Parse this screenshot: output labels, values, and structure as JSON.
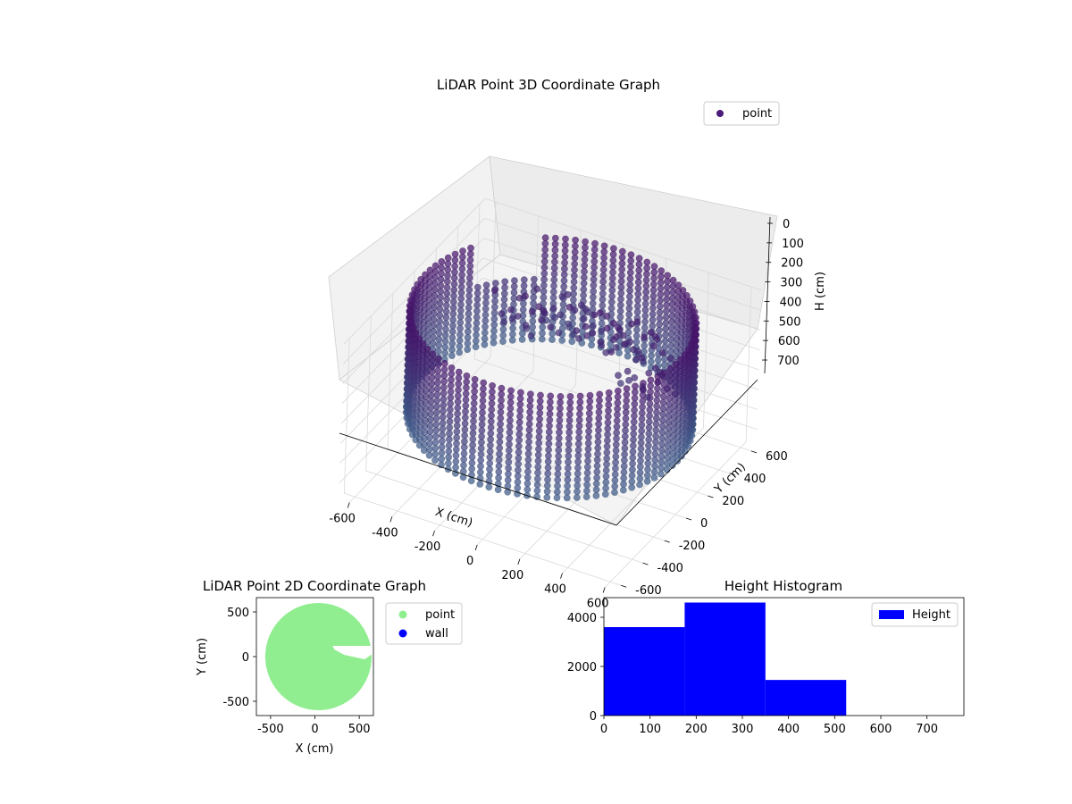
{
  "chart_data": [
    {
      "type": "scatter",
      "projection": "3d",
      "title": "LiDAR Point 3D Coordinate Graph",
      "xlabel": "X (cm)",
      "ylabel": "Y (cm)",
      "zlabel": "H (cm)",
      "xlim": [
        -650,
        650
      ],
      "ylim": [
        -650,
        650
      ],
      "zlim": [
        780,
        0
      ],
      "xticks": [
        -600,
        -400,
        -200,
        0,
        200,
        400,
        600
      ],
      "yticks": [
        -600,
        -400,
        -200,
        0,
        200,
        400,
        600
      ],
      "zticks": [
        0,
        100,
        200,
        300,
        400,
        500,
        600,
        700
      ],
      "z_axis_inverted": true,
      "grid": true,
      "legend": {
        "placement": "upper right",
        "entries": [
          "point"
        ]
      },
      "colormap": "viridis (upper range)",
      "series": [
        {
          "name": "point",
          "marker_color": "#4b1a7a",
          "description_shape": "cylindrical wall of radius ~600 cm centred near (0,0), heights 0–530 cm, plus inner structure near the top",
          "wall": {
            "center_x": 0,
            "center_y": 0,
            "radius": 600,
            "h_min": 0,
            "h_max": 530
          },
          "inner_clusters": [
            {
              "x": 150,
              "y": 100,
              "h": 40
            },
            {
              "x": 300,
              "y": 150,
              "h": 60
            },
            {
              "x": 400,
              "y": 0,
              "h": 120
            },
            {
              "x": -200,
              "y": 100,
              "h": 80
            },
            {
              "x": -100,
              "y": 300,
              "h": 150
            }
          ]
        }
      ]
    },
    {
      "type": "scatter",
      "title": "LiDAR Point 2D Coordinate Graph",
      "xlabel": "X (cm)",
      "ylabel": "Y (cm)",
      "xlim": [
        -660,
        660
      ],
      "ylim": [
        -660,
        660
      ],
      "xticks": [
        -500,
        0,
        500
      ],
      "yticks": [
        -500,
        0,
        500
      ],
      "legend": {
        "placement": "outside right",
        "entries": [
          "point",
          "wall"
        ]
      },
      "series": [
        {
          "name": "point",
          "color": "#90ee90",
          "region": "filled disc radius ~600 cm, notch on right side"
        },
        {
          "name": "wall",
          "color": "#0000ff"
        }
      ]
    },
    {
      "type": "bar",
      "subtype": "histogram",
      "title": "Height Histogram",
      "xlabel": "",
      "ylabel": "",
      "xlim": [
        0,
        780
      ],
      "ylim": [
        0,
        4800
      ],
      "xticks": [
        0,
        100,
        200,
        300,
        400,
        500,
        600,
        700
      ],
      "yticks": [
        0,
        2000,
        4000
      ],
      "legend": {
        "placement": "upper right",
        "entries": [
          "Height"
        ]
      },
      "bins": [
        {
          "from": 0,
          "to": 175,
          "count": 3600
        },
        {
          "from": 175,
          "to": 350,
          "count": 4600
        },
        {
          "from": 350,
          "to": 525,
          "count": 1450
        },
        {
          "from": 525,
          "to": 700,
          "count": 0
        }
      ],
      "series": [
        {
          "name": "Height",
          "color": "#0000ff"
        }
      ]
    }
  ]
}
